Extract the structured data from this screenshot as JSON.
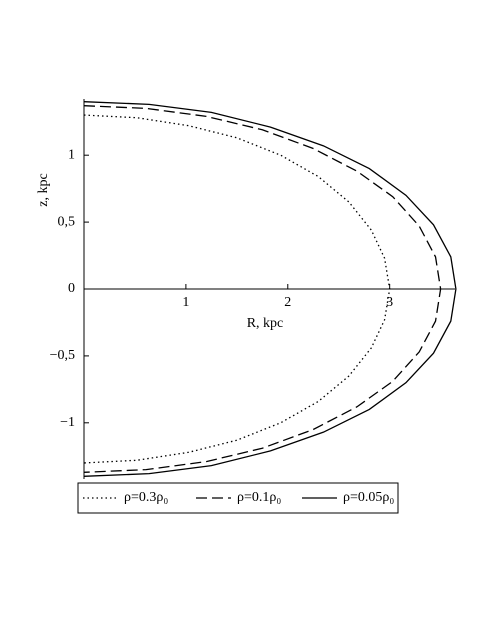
{
  "chart_data": {
    "type": "line",
    "x_label": "R, kpc",
    "y_label": "z, kpc",
    "xlim": [
      0,
      3.7
    ],
    "ylim": [
      -1.42,
      1.42
    ],
    "xticks": [
      1,
      2,
      3
    ],
    "yticks": [
      {
        "value": -1,
        "label": "−1"
      },
      {
        "value": -0.5,
        "label": "−0,5"
      },
      0,
      {
        "value": 0.5,
        "label": "0,5"
      },
      1
    ],
    "legend": "bottom",
    "series": [
      {
        "name": "ρ=0.3ρ₀",
        "color": "#000000",
        "style": "dotted",
        "x": [
          0,
          0.52,
          1.03,
          1.5,
          1.93,
          2.3,
          2.6,
          2.82,
          2.95,
          3.0,
          2.95,
          2.82,
          2.6,
          2.3,
          1.93,
          1.5,
          1.03,
          0.52,
          0
        ],
        "values": [
          1.3,
          1.28,
          1.22,
          1.13,
          1.0,
          0.84,
          0.65,
          0.44,
          0.23,
          0,
          -0.23,
          -0.44,
          -0.65,
          -0.84,
          -1.0,
          -1.13,
          -1.22,
          -1.28,
          -1.3
        ]
      },
      {
        "name": "ρ=0.1ρ₀",
        "color": "#000000",
        "style": "dashed",
        "x": [
          0,
          0.61,
          1.2,
          1.75,
          2.25,
          2.68,
          3.03,
          3.29,
          3.45,
          3.5,
          3.45,
          3.29,
          3.03,
          2.68,
          2.25,
          1.75,
          1.2,
          0.61,
          0
        ],
        "values": [
          1.37,
          1.35,
          1.29,
          1.19,
          1.05,
          0.88,
          0.69,
          0.47,
          0.24,
          0,
          -0.24,
          -0.47,
          -0.69,
          -0.88,
          -1.05,
          -1.19,
          -1.29,
          -1.35,
          -1.37
        ]
      },
      {
        "name": "ρ=0.05ρ₀",
        "color": "#000000",
        "style": "solid",
        "x": [
          0,
          0.64,
          1.25,
          1.83,
          2.35,
          2.8,
          3.16,
          3.43,
          3.6,
          3.65,
          3.6,
          3.43,
          3.16,
          2.8,
          2.35,
          1.83,
          1.25,
          0.64,
          0
        ],
        "values": [
          1.4,
          1.38,
          1.32,
          1.21,
          1.07,
          0.9,
          0.7,
          0.48,
          0.24,
          0,
          -0.24,
          -0.48,
          -0.7,
          -0.9,
          -1.07,
          -1.21,
          -1.32,
          -1.38,
          -1.4
        ]
      }
    ]
  }
}
